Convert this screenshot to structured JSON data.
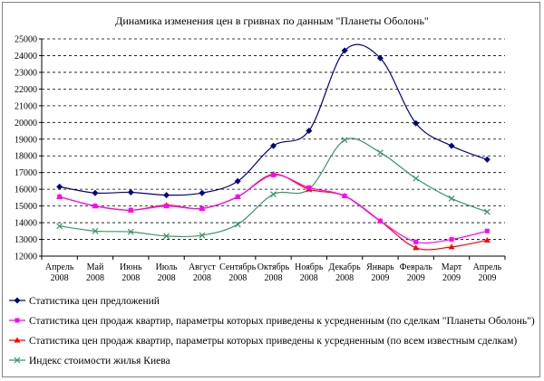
{
  "chart_data": {
    "type": "line",
    "title": "Динамика изменения цен в гривнах по данным \"Планеты Оболонь\"",
    "categories": [
      [
        "Апрель",
        "2008"
      ],
      [
        "Май",
        "2008"
      ],
      [
        "Июнь",
        "2008"
      ],
      [
        "Июль",
        "2008"
      ],
      [
        "Август",
        "2008"
      ],
      [
        "Сентябрь",
        "2008"
      ],
      [
        "Октябрь",
        "2008"
      ],
      [
        "Ноябрь",
        "2008"
      ],
      [
        "Декабрь",
        "2008"
      ],
      [
        "Январь",
        "2009"
      ],
      [
        "Февраль",
        "2009"
      ],
      [
        "Март",
        "2009"
      ],
      [
        "Апрель",
        "2009"
      ]
    ],
    "ylim": [
      12000,
      25000
    ],
    "yticks": [
      12000,
      13000,
      14000,
      15000,
      16000,
      17000,
      18000,
      19000,
      20000,
      21000,
      22000,
      23000,
      24000,
      25000
    ],
    "grid": "horizontal-dashed",
    "legend_position": "bottom",
    "series": [
      {
        "name": "Статистика цен  предложений",
        "color": "#000080",
        "marker": "diamond",
        "values": [
          16150,
          15780,
          15820,
          15650,
          15780,
          16480,
          18600,
          19500,
          24300,
          23850,
          19950,
          18600,
          17780
        ]
      },
      {
        "name": "Статистика цен продаж квартир, параметры которых приведены к усредненным (по сделкам \"Планеты Оболонь\")",
        "color": "#ff00ff",
        "marker": "square",
        "values": [
          15550,
          15000,
          14750,
          15000,
          14850,
          15550,
          16850,
          16100,
          15600,
          14100,
          12850,
          13000,
          13500
        ]
      },
      {
        "name": "Статистика цен продаж квартир, параметры которых приведены к усредненным (по всем известным сделкам)",
        "color": "#ff0000",
        "marker": "triangle",
        "values": [
          15550,
          15000,
          14750,
          15050,
          14850,
          15550,
          16900,
          16000,
          15600,
          14100,
          12500,
          12550,
          12950
        ]
      },
      {
        "name": "Индекс стоимости жилья Киева",
        "color": "#339966",
        "marker": "x",
        "values": [
          13800,
          13500,
          13450,
          13200,
          13250,
          13900,
          15700,
          16000,
          18950,
          18200,
          16650,
          15450,
          14650
        ]
      }
    ]
  }
}
